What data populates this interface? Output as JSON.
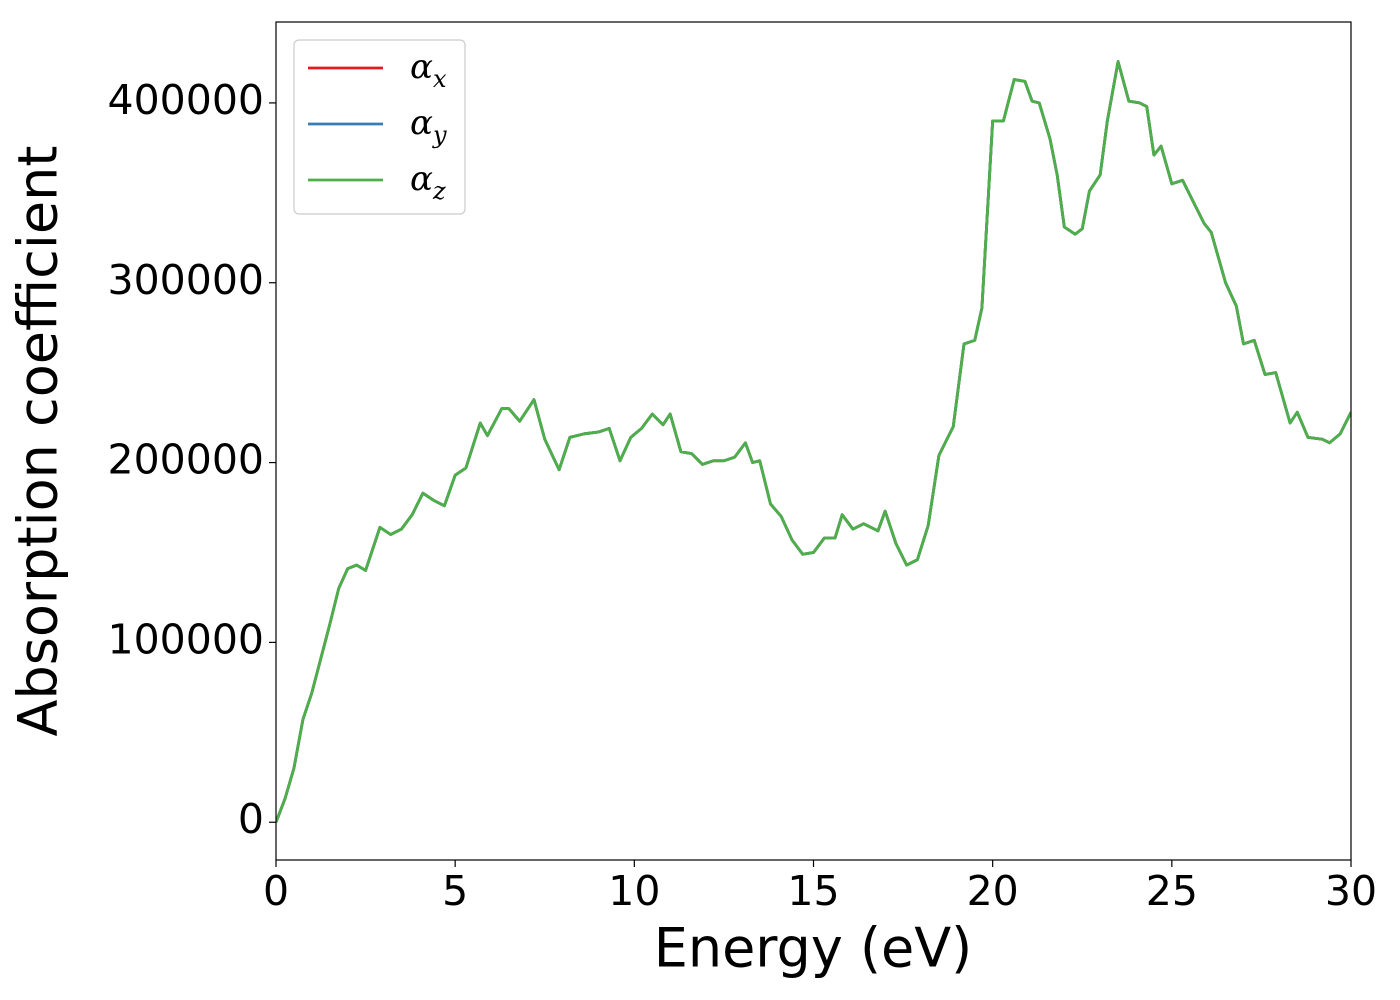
{
  "chart_data": {
    "type": "line",
    "xlabel": "Energy (eV)",
    "ylabel": "Absorption coefficient",
    "x": [
      0,
      0.25,
      0.5,
      0.75,
      1,
      1.5,
      1.75,
      2,
      2.25,
      2.5,
      2.9,
      3.2,
      3.5,
      3.8,
      4.1,
      4.4,
      4.7,
      5,
      5.3,
      5.7,
      5.9,
      6.3,
      6.5,
      6.8,
      7.2,
      7.5,
      7.9,
      8.2,
      8.6,
      9,
      9.3,
      9.6,
      9.9,
      10.2,
      10.5,
      10.8,
      11,
      11.3,
      11.6,
      11.9,
      12.2,
      12.5,
      12.8,
      13.1,
      13.3,
      13.5,
      13.8,
      14.1,
      14.4,
      14.7,
      15,
      15.3,
      15.6,
      15.8,
      16.1,
      16.4,
      16.8,
      17,
      17.3,
      17.6,
      17.9,
      18.2,
      18.5,
      18.9,
      19.2,
      19.5,
      19.7,
      20,
      20.3,
      20.6,
      20.9,
      21.1,
      21.3,
      21.6,
      21.8,
      22,
      22.3,
      22.5,
      22.7,
      23,
      23.2,
      23.5,
      23.8,
      24.1,
      24.3,
      24.5,
      24.7,
      25,
      25.3,
      25.6,
      25.9,
      26.1,
      26.5,
      26.8,
      27,
      27.3,
      27.6,
      27.9,
      28.3,
      28.5,
      28.8,
      29.2,
      29.4,
      29.7,
      30
    ],
    "series": [
      {
        "name": "αx",
        "color": "#e41a1c",
        "values": [
          0,
          13000,
          30000,
          57000,
          72000,
          110000,
          130000,
          141000,
          143000,
          140000,
          164000,
          160000,
          163000,
          171000,
          183000,
          179000,
          176000,
          193000,
          197000,
          222000,
          215000,
          230000,
          230000,
          223000,
          235000,
          213000,
          196000,
          214000,
          216000,
          217000,
          219000,
          201000,
          214000,
          219000,
          227000,
          221000,
          227000,
          206000,
          205000,
          199000,
          201000,
          201000,
          203000,
          211000,
          200000,
          201000,
          177000,
          170000,
          157000,
          149000,
          150000,
          158000,
          158000,
          171000,
          163000,
          166000,
          162000,
          173000,
          155000,
          143000,
          146000,
          165000,
          204000,
          220000,
          266000,
          268000,
          286000,
          390000,
          390000,
          413000,
          412000,
          401000,
          400000,
          380000,
          360000,
          331000,
          327000,
          330000,
          351000,
          360000,
          390000,
          423000,
          401000,
          400000,
          398000,
          371000,
          376000,
          355000,
          357000,
          345000,
          333000,
          328000,
          300000,
          287000,
          266000,
          268000,
          249000,
          250000,
          222000,
          228000,
          214000,
          213000,
          211000,
          216000,
          228000
        ]
      },
      {
        "name": "αy",
        "color": "#377eb8",
        "values": [
          0,
          13000,
          30000,
          57000,
          72000,
          110000,
          130000,
          141000,
          143000,
          140000,
          164000,
          160000,
          163000,
          171000,
          183000,
          179000,
          176000,
          193000,
          197000,
          222000,
          215000,
          230000,
          230000,
          223000,
          235000,
          213000,
          196000,
          214000,
          216000,
          217000,
          219000,
          201000,
          214000,
          219000,
          227000,
          221000,
          227000,
          206000,
          205000,
          199000,
          201000,
          201000,
          203000,
          211000,
          200000,
          201000,
          177000,
          170000,
          157000,
          149000,
          150000,
          158000,
          158000,
          171000,
          163000,
          166000,
          162000,
          173000,
          155000,
          143000,
          146000,
          165000,
          204000,
          220000,
          266000,
          268000,
          286000,
          390000,
          390000,
          413000,
          412000,
          401000,
          400000,
          380000,
          360000,
          331000,
          327000,
          330000,
          351000,
          360000,
          390000,
          423000,
          401000,
          400000,
          398000,
          371000,
          376000,
          355000,
          357000,
          345000,
          333000,
          328000,
          300000,
          287000,
          266000,
          268000,
          249000,
          250000,
          222000,
          228000,
          214000,
          213000,
          211000,
          216000,
          228000
        ]
      },
      {
        "name": "αz",
        "color": "#4daf4a",
        "values": [
          0,
          13000,
          30000,
          57000,
          72000,
          110000,
          130000,
          141000,
          143000,
          140000,
          164000,
          160000,
          163000,
          171000,
          183000,
          179000,
          176000,
          193000,
          197000,
          222000,
          215000,
          230000,
          230000,
          223000,
          235000,
          213000,
          196000,
          214000,
          216000,
          217000,
          219000,
          201000,
          214000,
          219000,
          227000,
          221000,
          227000,
          206000,
          205000,
          199000,
          201000,
          201000,
          203000,
          211000,
          200000,
          201000,
          177000,
          170000,
          157000,
          149000,
          150000,
          158000,
          158000,
          171000,
          163000,
          166000,
          162000,
          173000,
          155000,
          143000,
          146000,
          165000,
          204000,
          220000,
          266000,
          268000,
          286000,
          390000,
          390000,
          413000,
          412000,
          401000,
          400000,
          380000,
          360000,
          331000,
          327000,
          330000,
          351000,
          360000,
          390000,
          423000,
          401000,
          400000,
          398000,
          371000,
          376000,
          355000,
          357000,
          345000,
          333000,
          328000,
          300000,
          287000,
          266000,
          268000,
          249000,
          250000,
          222000,
          228000,
          214000,
          213000,
          211000,
          216000,
          228000
        ]
      }
    ],
    "xlim": [
      0,
      30
    ],
    "xticks": [
      0,
      5,
      10,
      15,
      20,
      25,
      30
    ],
    "ylim": [
      -21000,
      445000
    ],
    "yticks": [
      0,
      100000,
      200000,
      300000,
      400000
    ],
    "grid": false,
    "legend": "upper left"
  }
}
